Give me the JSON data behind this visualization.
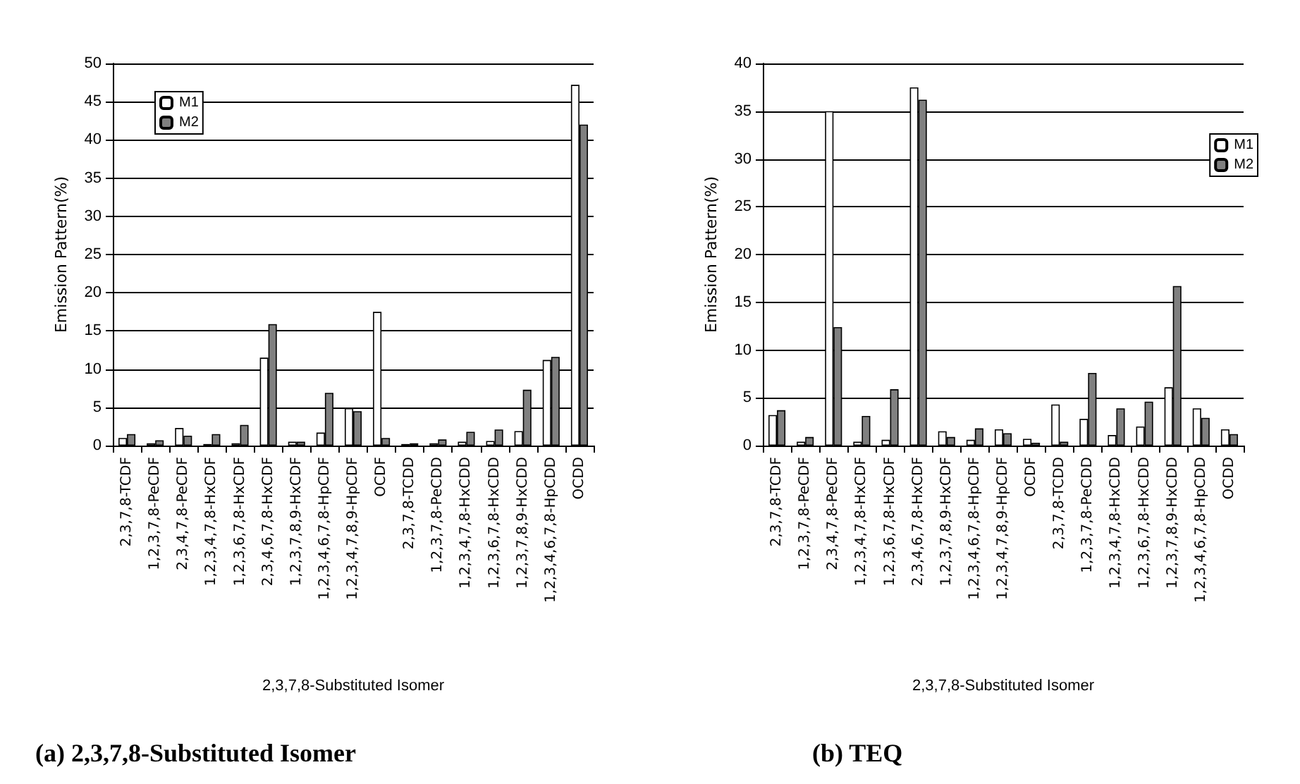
{
  "chart_data": [
    {
      "type": "bar",
      "title": "(a) 2,3,7,8-Substituted Isomer",
      "xlabel": "2,3,7,8-Substituted Isomer",
      "ylabel": "Emission Pattern(%)",
      "categories": [
        "2,3,7,8-TCDF",
        "1,2,3,7,8-PeCDF",
        "2,3,4,7,8-PeCDF",
        "1,2,3,4,7,8-HxCDF",
        "1,2,3,6,7,8-HxCDF",
        "2,3,4,6,7,8-HxCDF",
        "1,2,3,7,8,9-HxCDF",
        "1,2,3,4,6,7,8-HpCDF",
        "1,2,3,4,7,8,9-HpCDF",
        "OCDF",
        "2,3,7,8-TCDD",
        "1,2,3,7,8-PeCDD",
        "1,2,3,4,7,8-HxCDD",
        "1,2,3,6,7,8-HxCDD",
        "1,2,3,7,8,9-HxCDD",
        "1,2,3,4,6,7,8-HpCDD",
        "OCDD"
      ],
      "series": [
        {
          "name": "M1",
          "color": "#ffffff",
          "values": [
            1.0,
            0.3,
            2.3,
            0.2,
            0.3,
            11.5,
            0.5,
            1.7,
            4.9,
            17.5,
            0.2,
            0.3,
            0.5,
            0.6,
            1.9,
            11.2,
            47.2
          ]
        },
        {
          "name": "M2",
          "color": "#808080",
          "values": [
            1.5,
            0.7,
            1.3,
            1.5,
            2.7,
            15.9,
            0.5,
            6.9,
            4.5,
            1.0,
            0.3,
            0.8,
            1.8,
            2.1,
            7.3,
            11.6,
            42.0
          ]
        }
      ],
      "ylim": [
        0,
        50
      ],
      "yticks": [
        0,
        5,
        10,
        15,
        20,
        25,
        30,
        35,
        40,
        45,
        50
      ],
      "grid": "y",
      "legend": "top left"
    },
    {
      "type": "bar",
      "title": "(b) TEQ",
      "xlabel": "2,3,7,8-Substituted Isomer",
      "ylabel": "Emission Pattern(%)",
      "categories": [
        "2,3,7,8-TCDF",
        "1,2,3,7,8-PeCDF",
        "2,3,4,7,8-PeCDF",
        "1,2,3,4,7,8-HxCDF",
        "1,2,3,6,7,8-HxCDF",
        "2,3,4,6,7,8-HxCDF",
        "1,2,3,7,8,9-HxCDF",
        "1,2,3,4,6,7,8-HpCDF",
        "1,2,3,4,7,8,9-HpCDF",
        "OCDF",
        "2,3,7,8-TCDD",
        "1,2,3,7,8-PeCDD",
        "1,2,3,4,7,8-HxCDD",
        "1,2,3,6,7,8-HxCDD",
        "1,2,3,7,8,9-HxCDD",
        "1,2,3,4,6,7,8-HpCDD",
        "OCDD"
      ],
      "series": [
        {
          "name": "M1",
          "color": "#ffffff",
          "values": [
            3.2,
            0.4,
            35.0,
            0.4,
            0.6,
            37.5,
            1.5,
            0.6,
            1.7,
            0.7,
            4.3,
            2.8,
            1.1,
            2.0,
            6.1,
            3.9,
            1.7
          ]
        },
        {
          "name": "M2",
          "color": "#808080",
          "values": [
            3.7,
            0.9,
            12.4,
            3.1,
            5.9,
            36.2,
            0.9,
            1.8,
            1.3,
            0.3,
            0.4,
            7.6,
            3.9,
            4.6,
            16.7,
            2.9,
            1.2
          ]
        }
      ],
      "ylim": [
        0,
        40
      ],
      "yticks": [
        0,
        5,
        10,
        15,
        20,
        25,
        30,
        35,
        40
      ],
      "grid": "y",
      "legend": "top right"
    }
  ]
}
